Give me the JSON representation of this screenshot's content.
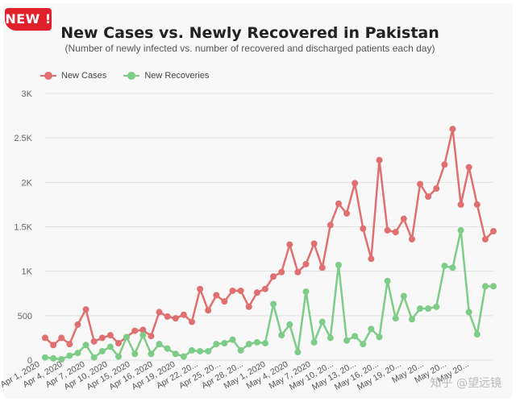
{
  "badge": {
    "label": "NEW !"
  },
  "watermark": "知乎 @望远镜",
  "colors": {
    "new_cases": "#e07070",
    "new_recoveries": "#7dcc88",
    "badge": "#e0202a"
  },
  "chart_data": {
    "type": "line",
    "title": "New Cases vs. Newly Recovered in Pakistan",
    "subtitle": "(Number of newly infected vs. number of recovered and discharged patients each day)",
    "ylim": [
      0,
      3000
    ],
    "yticks": [
      0,
      500,
      1000,
      1500,
      2000,
      2500,
      3000
    ],
    "ytick_labels": [
      "0",
      "500",
      "1K",
      "1.5K",
      "2K",
      "2.5K",
      "3K"
    ],
    "grid": true,
    "legend_position": "top-left",
    "x_tick_labels": [
      "Apr 1, 2020",
      "Apr 4, 2020",
      "Apr 7, 2020",
      "Apr 10, 2020",
      "Apr 15, 2020",
      "Apr 16, 2020",
      "Apr 19, 2020",
      "Apr 22, 20...",
      "Apr 25, 20...",
      "Apr 28, 20...",
      "May 1, 2020",
      "May 4, 2020",
      "May 7, 2020",
      "May 10, 20...",
      "May 13, 20...",
      "May 16, 20...",
      "May 19, 20...",
      "May 20...",
      "May 20...",
      "May 20..."
    ],
    "series": [
      {
        "name": "New Cases",
        "values": [
          250,
          170,
          250,
          180,
          400,
          570,
          210,
          250,
          280,
          190,
          260,
          330,
          340,
          270,
          540,
          490,
          470,
          510,
          430,
          800,
          560,
          730,
          660,
          780,
          780,
          600,
          760,
          800,
          940,
          990,
          1300,
          990,
          1080,
          1310,
          1040,
          1520,
          1760,
          1650,
          1990,
          1480,
          1140,
          2250,
          1460,
          1440,
          1590,
          1360,
          1980,
          1840,
          1930,
          2200,
          2600,
          1750,
          2170,
          1750,
          1360,
          1450
        ]
      },
      {
        "name": "New Recoveries",
        "values": [
          30,
          20,
          10,
          50,
          80,
          170,
          30,
          100,
          150,
          40,
          260,
          70,
          280,
          70,
          180,
          130,
          70,
          40,
          110,
          100,
          100,
          180,
          190,
          230,
          110,
          180,
          200,
          190,
          630,
          280,
          400,
          90,
          770,
          200,
          430,
          250,
          1070,
          220,
          270,
          180,
          350,
          260,
          890,
          470,
          720,
          460,
          580,
          580,
          600,
          1060,
          1040,
          1460,
          540,
          290,
          830,
          830
        ]
      }
    ]
  }
}
